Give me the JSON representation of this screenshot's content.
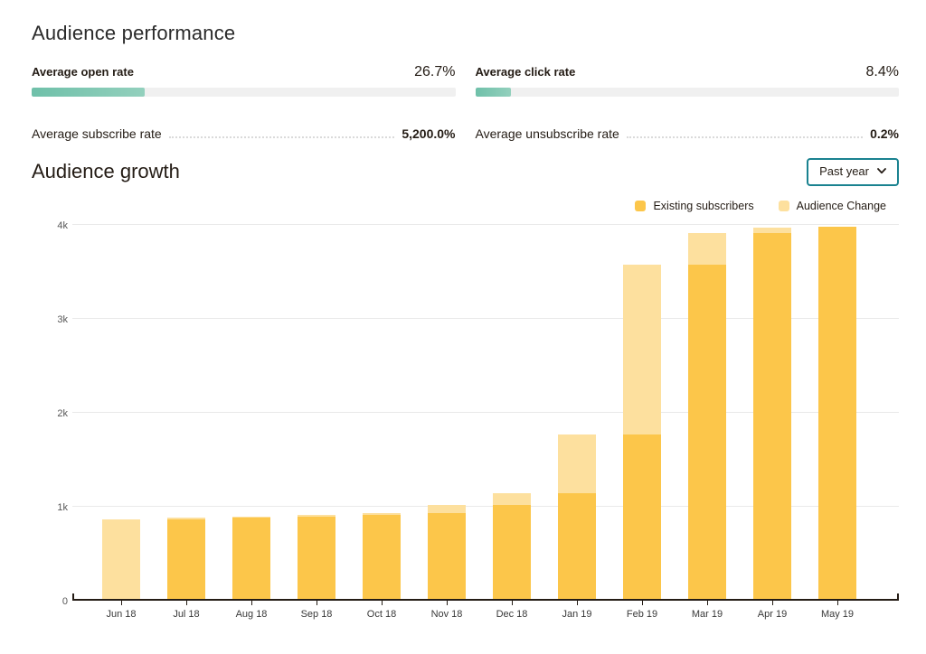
{
  "performance": {
    "title": "Audience performance",
    "bar_metrics": [
      {
        "label": "Average open rate",
        "value": "26.7%",
        "percent": 26.7
      },
      {
        "label": "Average click rate",
        "value": "8.4%",
        "percent": 8.4
      }
    ],
    "leader_metrics": [
      {
        "label": "Average subscribe rate",
        "value": "5,200.0%"
      },
      {
        "label": "Average unsubscribe rate",
        "value": "0.2%"
      }
    ],
    "progress_fill_color": "#7CC5B0",
    "progress_track_color": "#F0F0F0"
  },
  "growth": {
    "title": "Audience growth",
    "range_button": {
      "label": "Past year",
      "icon": "chevron-down-icon",
      "border_color": "#1A8290"
    }
  },
  "chart_data": {
    "type": "bar",
    "stacked": true,
    "title": "Audience growth",
    "categories": [
      "Jun 18",
      "Jul 18",
      "Aug 18",
      "Sep 18",
      "Oct 18",
      "Nov 18",
      "Dec 18",
      "Jan 19",
      "Feb 19",
      "Mar 19",
      "Apr 19",
      "May 19"
    ],
    "series": [
      {
        "name": "Existing subscribers",
        "color": "#FCC64A",
        "values": [
          0,
          840,
          865,
          870,
          895,
          910,
          1000,
          1125,
          1750,
          3550,
          3890,
          3960
        ]
      },
      {
        "name": "Audience Change",
        "color": "#FDE09E",
        "values": [
          840,
          25,
          5,
          25,
          15,
          90,
          125,
          625,
          1800,
          340,
          60,
          0
        ]
      }
    ],
    "stack_totals": [
      840,
      865,
      870,
      895,
      910,
      1000,
      1125,
      1750,
      3550,
      3890,
      3950,
      3960
    ],
    "ylim": [
      0,
      4000
    ],
    "yticks": [
      {
        "value": 0,
        "label": "0"
      },
      {
        "value": 1000,
        "label": "1k"
      },
      {
        "value": 2000,
        "label": "2k"
      },
      {
        "value": 3000,
        "label": "3k"
      },
      {
        "value": 4000,
        "label": "4k"
      }
    ],
    "grid": true,
    "legend_position": "top-right",
    "xlabel": "",
    "ylabel": ""
  }
}
